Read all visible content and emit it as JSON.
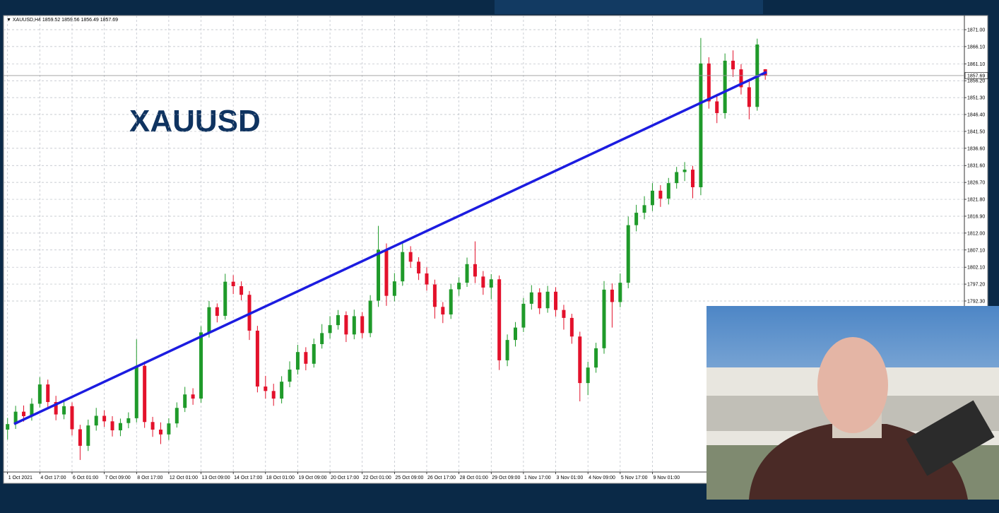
{
  "chart_data": {
    "type": "candlestick",
    "title": "XAUUSD",
    "symbol": "XAUUSD,H4",
    "up_color": "#1f9a2a",
    "down_color": "#e3112b",
    "grid": true,
    "ylim": [
      1742.7,
      1875.1
    ],
    "yticks": [
      {
        "value": 1871.0,
        "label": "1871.00"
      },
      {
        "value": 1866.1,
        "label": "1866.10"
      },
      {
        "value": 1861.1,
        "label": "1861.10"
      },
      {
        "value": 1856.2,
        "label": "1856.20"
      },
      {
        "value": 1851.3,
        "label": "1851.30"
      },
      {
        "value": 1846.4,
        "label": "1846.40"
      },
      {
        "value": 1841.5,
        "label": "1841.50"
      },
      {
        "value": 1836.6,
        "label": "1836.60"
      },
      {
        "value": 1831.6,
        "label": "1831.60"
      },
      {
        "value": 1826.7,
        "label": "1826.70"
      },
      {
        "value": 1821.8,
        "label": "1821.80"
      },
      {
        "value": 1816.9,
        "label": "1816.90"
      },
      {
        "value": 1812.0,
        "label": "1812.00"
      },
      {
        "value": 1807.1,
        "label": "1807.10"
      },
      {
        "value": 1802.1,
        "label": "1802.10"
      },
      {
        "value": 1797.2,
        "label": "1797.20"
      },
      {
        "value": 1792.3,
        "label": "1792.30"
      }
    ],
    "xticks": [
      {
        "value": 0,
        "label": "1 Oct 2021"
      },
      {
        "value": 4,
        "label": "4 Oct 17:00"
      },
      {
        "value": 8,
        "label": "6 Oct 01:00"
      },
      {
        "value": 12,
        "label": "7 Oct 09:00"
      },
      {
        "value": 16,
        "label": "8 Oct 17:00"
      },
      {
        "value": 20,
        "label": "12 Oct 01:00"
      },
      {
        "value": 24,
        "label": "13 Oct 09:00"
      },
      {
        "value": 28,
        "label": "14 Oct 17:00"
      },
      {
        "value": 32,
        "label": "18 Oct 01:00"
      },
      {
        "value": 36,
        "label": "19 Oct 09:00"
      },
      {
        "value": 40,
        "label": "20 Oct 17:00"
      },
      {
        "value": 44,
        "label": "22 Oct 01:00"
      },
      {
        "value": 48,
        "label": "25 Oct 09:00"
      },
      {
        "value": 52,
        "label": "26 Oct 17:00"
      },
      {
        "value": 56,
        "label": "28 Oct 01:00"
      },
      {
        "value": 60,
        "label": "29 Oct 09:00"
      },
      {
        "value": 64,
        "label": "1 Nov 17:00"
      },
      {
        "value": 68,
        "label": "3 Nov 01:00"
      },
      {
        "value": 72,
        "label": "4 Nov 09:00"
      },
      {
        "value": 76,
        "label": "5 Nov 17:00"
      },
      {
        "value": 80,
        "label": "9 Nov 01:00"
      }
    ],
    "xlim": [
      -0.5,
      118.7
    ],
    "open": [
      1755.0,
      1756.6,
      1760.2,
      1758.9,
      1762.5,
      1768.1,
      1763.0,
      1759.4,
      1761.8,
      1755.1,
      1750.3,
      1756.2,
      1759.0,
      1757.4,
      1754.8,
      1756.9,
      1758.3,
      1773.5,
      1757.2,
      1755.0,
      1753.6,
      1756.8,
      1761.3,
      1765.2,
      1764.0,
      1783.2,
      1790.5,
      1788.0,
      1797.9,
      1796.6,
      1794.1,
      1783.7,
      1767.5,
      1766.2,
      1764.0,
      1768.9,
      1772.4,
      1777.5,
      1774.1,
      1779.8,
      1783.0,
      1785.3,
      1788.2,
      1782.6,
      1787.9,
      1783.0,
      1792.4,
      1807.2,
      1793.8,
      1798.0,
      1806.5,
      1803.7,
      1800.3,
      1797.1,
      1790.6,
      1788.4,
      1795.7,
      1797.6,
      1803.0,
      1799.4,
      1796.2,
      1798.6,
      1775.1,
      1781.0,
      1784.6,
      1791.5,
      1794.8,
      1790.2,
      1795.0,
      1789.7,
      1787.4,
      1782.0,
      1768.5,
      1773.0,
      1778.6,
      1795.6,
      1792.0,
      1797.6,
      1814.3,
      1817.9,
      1820.1,
      1824.3,
      1822.0,
      1826.5,
      1829.7,
      1830.4,
      1825.3,
      1861.2,
      1850.2,
      1846.8,
      1862.0,
      1859.5,
      1854.3,
      1848.6,
      1859.52
    ],
    "high": [
      1758.4,
      1761.9,
      1762.0,
      1764.1,
      1770.2,
      1769.5,
      1764.8,
      1763.6,
      1762.9,
      1756.4,
      1757.9,
      1761.3,
      1760.6,
      1758.9,
      1758.2,
      1760.0,
      1781.2,
      1774.8,
      1758.7,
      1757.1,
      1758.3,
      1762.9,
      1767.4,
      1767.0,
      1785.0,
      1792.3,
      1791.6,
      1800.2,
      1799.8,
      1798.0,
      1795.2,
      1785.1,
      1770.6,
      1768.3,
      1770.5,
      1774.8,
      1779.6,
      1778.9,
      1781.4,
      1785.6,
      1787.9,
      1789.7,
      1789.3,
      1789.8,
      1789.1,
      1794.0,
      1814.1,
      1809.0,
      1800.4,
      1809.1,
      1808.2,
      1805.0,
      1802.1,
      1798.5,
      1792.0,
      1797.3,
      1799.2,
      1804.9,
      1809.6,
      1801.0,
      1800.1,
      1799.7,
      1782.6,
      1786.2,
      1793.2,
      1796.9,
      1796.0,
      1796.7,
      1796.3,
      1791.2,
      1788.6,
      1783.4,
      1774.7,
      1780.2,
      1798.1,
      1797.4,
      1800.3,
      1816.8,
      1820.2,
      1822.7,
      1826.5,
      1825.9,
      1828.0,
      1831.2,
      1832.6,
      1831.5,
      1868.6,
      1863.0,
      1852.4,
      1864.1,
      1865.0,
      1861.0,
      1856.1,
      1868.4,
      1859.56
    ],
    "low": [
      1752.1,
      1755.2,
      1757.3,
      1757.6,
      1761.4,
      1761.2,
      1757.7,
      1758.0,
      1753.3,
      1746.2,
      1748.8,
      1754.7,
      1755.8,
      1753.0,
      1753.1,
      1755.4,
      1757.1,
      1755.5,
      1752.9,
      1750.8,
      1752.0,
      1755.6,
      1760.1,
      1762.2,
      1762.8,
      1781.7,
      1786.1,
      1786.9,
      1794.3,
      1792.5,
      1781.0,
      1765.8,
      1764.0,
      1761.9,
      1762.6,
      1767.3,
      1771.0,
      1772.2,
      1773.0,
      1778.5,
      1781.4,
      1784.0,
      1780.4,
      1781.2,
      1781.5,
      1781.8,
      1790.6,
      1790.9,
      1792.2,
      1796.7,
      1801.9,
      1798.4,
      1795.3,
      1787.2,
      1785.9,
      1787.1,
      1793.8,
      1796.4,
      1797.5,
      1794.1,
      1792.8,
      1772.3,
      1773.4,
      1779.1,
      1783.3,
      1789.8,
      1788.5,
      1788.9,
      1787.8,
      1784.0,
      1779.9,
      1763.2,
      1765.0,
      1771.5,
      1777.0,
      1784.6,
      1790.5,
      1796.0,
      1812.5,
      1816.0,
      1818.4,
      1819.6,
      1820.3,
      1824.9,
      1827.1,
      1822.1,
      1823.0,
      1848.1,
      1843.9,
      1845.2,
      1857.3,
      1852.2,
      1845.0,
      1847.5,
      1856.49
    ],
    "close": [
      1756.6,
      1760.2,
      1758.9,
      1762.5,
      1768.1,
      1763.0,
      1759.4,
      1761.8,
      1755.1,
      1750.3,
      1756.2,
      1759.0,
      1757.4,
      1754.8,
      1756.9,
      1758.3,
      1773.5,
      1757.2,
      1755.0,
      1753.6,
      1756.8,
      1761.3,
      1765.2,
      1764.0,
      1783.2,
      1790.5,
      1788.0,
      1797.9,
      1796.6,
      1794.1,
      1783.7,
      1767.5,
      1766.2,
      1764.0,
      1768.9,
      1772.4,
      1777.5,
      1774.1,
      1779.8,
      1783.0,
      1785.3,
      1788.2,
      1782.6,
      1787.9,
      1783.0,
      1792.4,
      1807.2,
      1793.8,
      1798.0,
      1806.5,
      1803.7,
      1800.3,
      1797.1,
      1790.6,
      1788.4,
      1795.7,
      1797.6,
      1803.0,
      1799.4,
      1796.2,
      1798.6,
      1775.1,
      1781.0,
      1784.6,
      1791.5,
      1794.8,
      1790.2,
      1795.0,
      1789.7,
      1787.4,
      1782.0,
      1768.5,
      1773.0,
      1778.6,
      1795.6,
      1792.0,
      1797.6,
      1814.3,
      1817.9,
      1820.1,
      1824.3,
      1822.0,
      1826.5,
      1829.7,
      1830.4,
      1825.3,
      1861.2,
      1850.2,
      1846.8,
      1862.0,
      1859.5,
      1854.3,
      1848.6,
      1866.7,
      1857.69
    ]
  }
}
